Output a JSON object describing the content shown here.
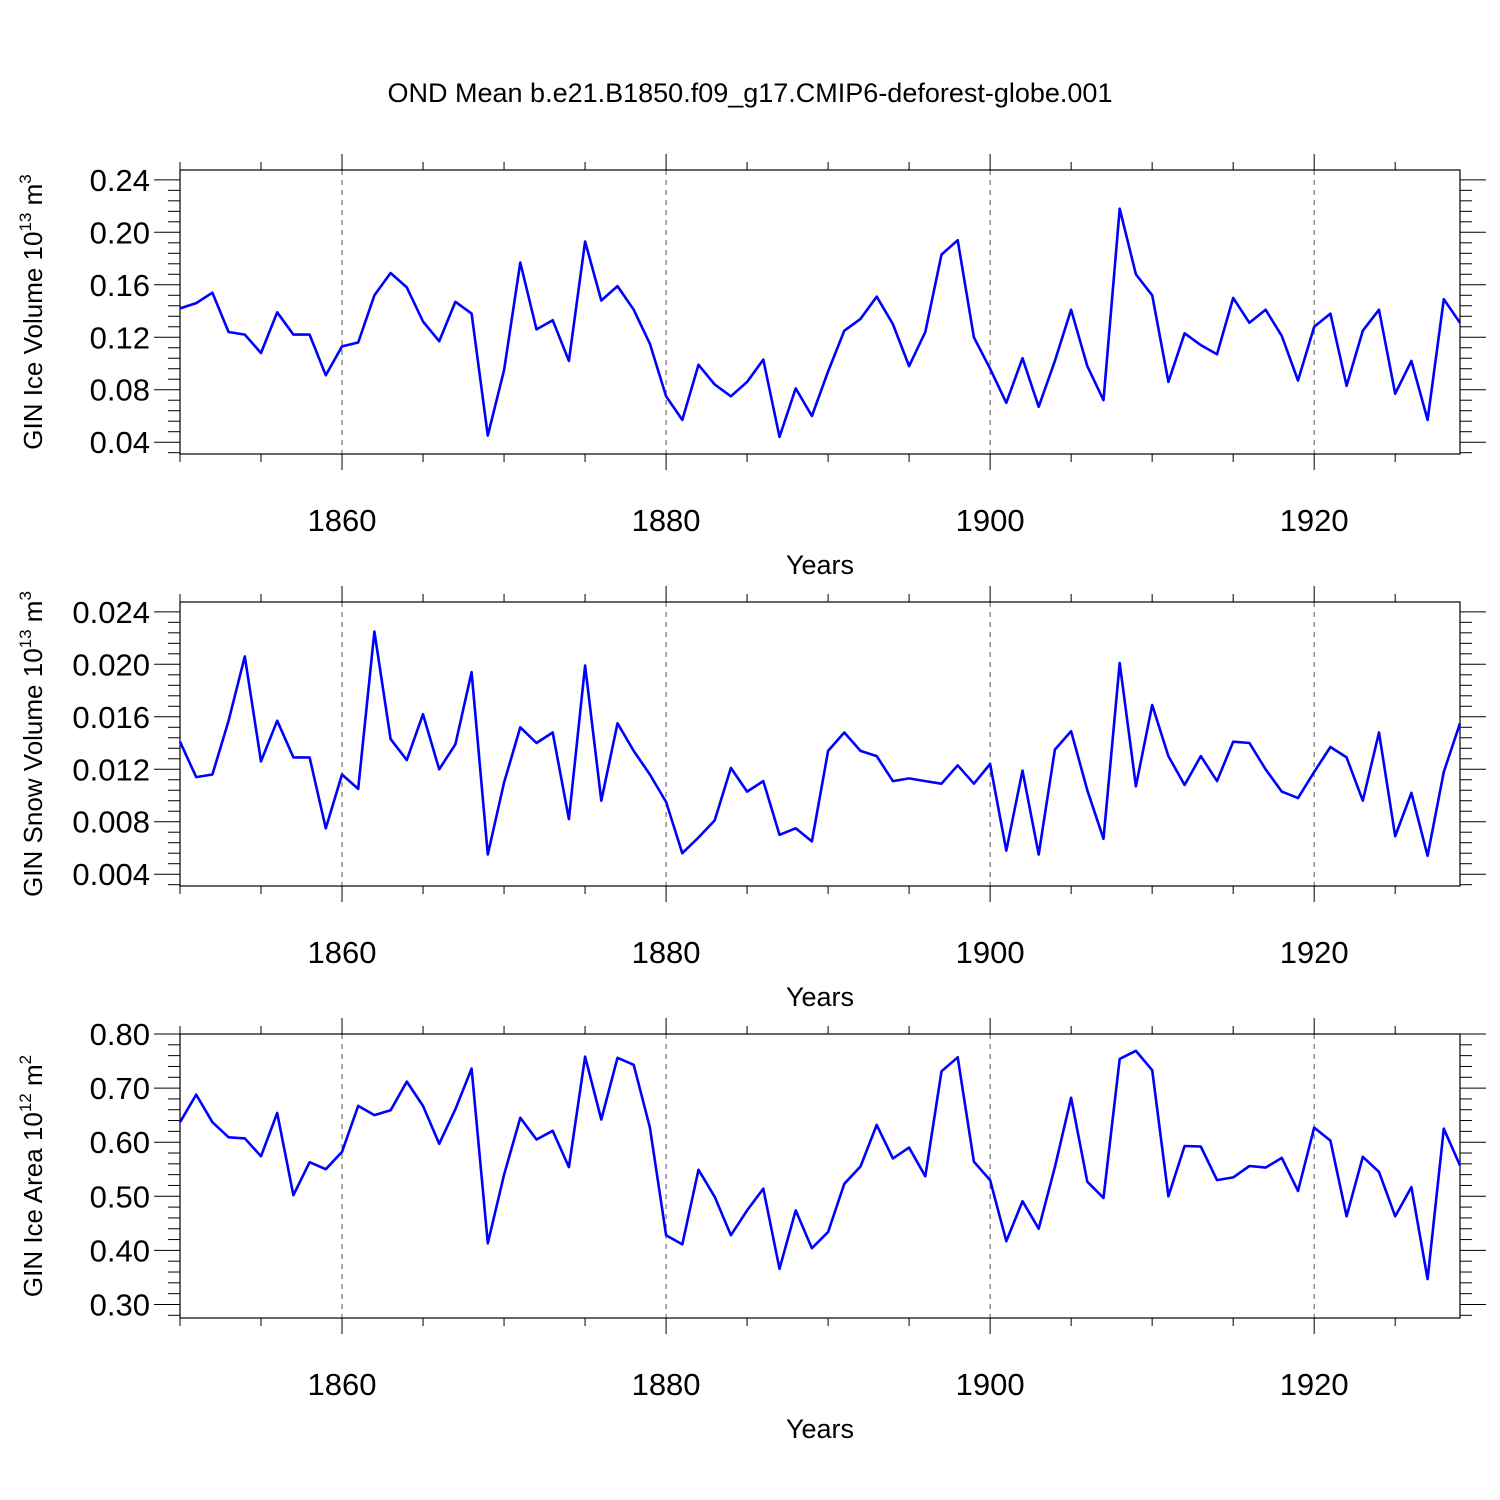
{
  "figure": {
    "title": "OND Mean b.e21.B1850.f09_g17.CMIP6-deforest-globe.001"
  },
  "colors": {
    "series": "#0000ff",
    "axis": "#000000",
    "grid": "#555555"
  },
  "chart_data": [
    {
      "type": "line",
      "xlabel": "Years",
      "ylabel": "GIN Ice Volume 10",
      "ylabel_exp": "13",
      "ylabel_unit": "m",
      "ylabel_unit_exp": "3",
      "xlim": [
        1850,
        1929
      ],
      "ylim": [
        0.031,
        0.2475
      ],
      "xticks": [
        1860,
        1880,
        1900,
        1920
      ],
      "xtick_labels": [
        "1860",
        "1880",
        "1900",
        "1920"
      ],
      "yticks": [
        0.04,
        0.08,
        0.12,
        0.16,
        0.2,
        0.24
      ],
      "ytick_labels": [
        "0.04",
        "0.08",
        "0.12",
        "0.16",
        "0.20",
        "0.24"
      ],
      "yminor": 0.008,
      "x": [
        1850,
        1851,
        1852,
        1853,
        1854,
        1855,
        1856,
        1857,
        1858,
        1859,
        1860,
        1861,
        1862,
        1863,
        1864,
        1865,
        1866,
        1867,
        1868,
        1869,
        1870,
        1871,
        1872,
        1873,
        1874,
        1875,
        1876,
        1877,
        1878,
        1879,
        1880,
        1881,
        1882,
        1883,
        1884,
        1885,
        1886,
        1887,
        1888,
        1889,
        1890,
        1891,
        1892,
        1893,
        1894,
        1895,
        1896,
        1897,
        1898,
        1899,
        1900,
        1901,
        1902,
        1903,
        1904,
        1905,
        1906,
        1907,
        1908,
        1909,
        1910,
        1911,
        1912,
        1913,
        1914,
        1915,
        1916,
        1917,
        1918,
        1919,
        1920,
        1921,
        1922,
        1923,
        1924,
        1925,
        1926,
        1927,
        1928,
        1929
      ],
      "values": [
        0.142,
        0.146,
        0.154,
        0.124,
        0.122,
        0.108,
        0.139,
        0.122,
        0.122,
        0.091,
        0.113,
        0.116,
        0.152,
        0.169,
        0.158,
        0.132,
        0.117,
        0.147,
        0.138,
        0.045,
        0.095,
        0.177,
        0.126,
        0.133,
        0.102,
        0.193,
        0.148,
        0.159,
        0.141,
        0.115,
        0.075,
        0.057,
        0.099,
        0.084,
        0.075,
        0.086,
        0.103,
        0.044,
        0.081,
        0.06,
        0.094,
        0.125,
        0.134,
        0.151,
        0.13,
        0.098,
        0.124,
        0.183,
        0.194,
        0.12,
        0.096,
        0.07,
        0.104,
        0.067,
        0.102,
        0.141,
        0.098,
        0.072,
        0.218,
        0.168,
        0.152,
        0.086,
        0.123,
        0.114,
        0.107,
        0.15,
        0.131,
        0.141,
        0.121,
        0.087,
        0.128,
        0.138,
        0.083,
        0.125,
        0.141,
        0.077,
        0.102,
        0.057,
        0.149,
        0.131
      ]
    },
    {
      "type": "line",
      "xlabel": "Years",
      "ylabel": "GIN Snow Volume 10",
      "ylabel_exp": "13",
      "ylabel_unit": "m",
      "ylabel_unit_exp": "3",
      "xlim": [
        1850,
        1929
      ],
      "ylim": [
        0.0031,
        0.02475
      ],
      "xticks": [
        1860,
        1880,
        1900,
        1920
      ],
      "xtick_labels": [
        "1860",
        "1880",
        "1900",
        "1920"
      ],
      "yticks": [
        0.004,
        0.008,
        0.012,
        0.016,
        0.02,
        0.024
      ],
      "ytick_labels": [
        "0.004",
        "0.008",
        "0.012",
        "0.016",
        "0.020",
        "0.024"
      ],
      "yminor": 0.0008,
      "x": [
        1850,
        1851,
        1852,
        1853,
        1854,
        1855,
        1856,
        1857,
        1858,
        1859,
        1860,
        1861,
        1862,
        1863,
        1864,
        1865,
        1866,
        1867,
        1868,
        1869,
        1870,
        1871,
        1872,
        1873,
        1874,
        1875,
        1876,
        1877,
        1878,
        1879,
        1880,
        1881,
        1882,
        1883,
        1884,
        1885,
        1886,
        1887,
        1888,
        1889,
        1890,
        1891,
        1892,
        1893,
        1894,
        1895,
        1896,
        1897,
        1898,
        1899,
        1900,
        1901,
        1902,
        1903,
        1904,
        1905,
        1906,
        1907,
        1908,
        1909,
        1910,
        1911,
        1912,
        1913,
        1914,
        1915,
        1916,
        1917,
        1918,
        1919,
        1920,
        1921,
        1922,
        1923,
        1924,
        1925,
        1926,
        1927,
        1928,
        1929
      ],
      "values": [
        0.0141,
        0.0114,
        0.0116,
        0.0157,
        0.0206,
        0.0126,
        0.0157,
        0.0129,
        0.0129,
        0.0075,
        0.0116,
        0.0105,
        0.0225,
        0.0143,
        0.0127,
        0.0162,
        0.012,
        0.0139,
        0.0194,
        0.0055,
        0.011,
        0.0152,
        0.014,
        0.0148,
        0.0082,
        0.0199,
        0.0096,
        0.0155,
        0.0134,
        0.0116,
        0.0095,
        0.0056,
        0.0068,
        0.0081,
        0.0121,
        0.0103,
        0.0111,
        0.007,
        0.0075,
        0.0065,
        0.0134,
        0.0148,
        0.0134,
        0.013,
        0.0111,
        0.0113,
        0.0111,
        0.0109,
        0.0123,
        0.0109,
        0.0124,
        0.0058,
        0.0119,
        0.0055,
        0.0135,
        0.0149,
        0.0104,
        0.0067,
        0.0201,
        0.0107,
        0.0169,
        0.013,
        0.0108,
        0.013,
        0.0111,
        0.0141,
        0.014,
        0.012,
        0.0103,
        0.0098,
        0.0118,
        0.0137,
        0.0129,
        0.0096,
        0.0148,
        0.0069,
        0.0102,
        0.0054,
        0.0118,
        0.0155
      ]
    },
    {
      "type": "line",
      "xlabel": "Years",
      "ylabel": "GIN Ice Area 10",
      "ylabel_exp": "12",
      "ylabel_unit": "m",
      "ylabel_unit_exp": "2",
      "xlim": [
        1850,
        1929
      ],
      "ylim": [
        0.275,
        0.8
      ],
      "xticks": [
        1860,
        1880,
        1900,
        1920
      ],
      "xtick_labels": [
        "1860",
        "1880",
        "1900",
        "1920"
      ],
      "yticks": [
        0.3,
        0.4,
        0.5,
        0.6,
        0.7,
        0.8
      ],
      "ytick_labels": [
        "0.30",
        "0.40",
        "0.50",
        "0.60",
        "0.70",
        "0.80"
      ],
      "yminor": 0.02,
      "x": [
        1850,
        1851,
        1852,
        1853,
        1854,
        1855,
        1856,
        1857,
        1858,
        1859,
        1860,
        1861,
        1862,
        1863,
        1864,
        1865,
        1866,
        1867,
        1868,
        1869,
        1870,
        1871,
        1872,
        1873,
        1874,
        1875,
        1876,
        1877,
        1878,
        1879,
        1880,
        1881,
        1882,
        1883,
        1884,
        1885,
        1886,
        1887,
        1888,
        1889,
        1890,
        1891,
        1892,
        1893,
        1894,
        1895,
        1896,
        1897,
        1898,
        1899,
        1900,
        1901,
        1902,
        1903,
        1904,
        1905,
        1906,
        1907,
        1908,
        1909,
        1910,
        1911,
        1912,
        1913,
        1914,
        1915,
        1916,
        1917,
        1918,
        1919,
        1920,
        1921,
        1922,
        1923,
        1924,
        1925,
        1926,
        1927,
        1928,
        1929
      ],
      "values": [
        0.637,
        0.688,
        0.637,
        0.609,
        0.607,
        0.574,
        0.654,
        0.502,
        0.563,
        0.55,
        0.582,
        0.667,
        0.65,
        0.659,
        0.712,
        0.667,
        0.597,
        0.661,
        0.736,
        0.413,
        0.54,
        0.645,
        0.605,
        0.621,
        0.554,
        0.758,
        0.642,
        0.756,
        0.743,
        0.627,
        0.428,
        0.411,
        0.549,
        0.499,
        0.428,
        0.474,
        0.514,
        0.366,
        0.474,
        0.404,
        0.434,
        0.523,
        0.555,
        0.632,
        0.57,
        0.59,
        0.537,
        0.731,
        0.757,
        0.564,
        0.53,
        0.417,
        0.491,
        0.44,
        0.554,
        0.682,
        0.527,
        0.497,
        0.754,
        0.769,
        0.733,
        0.5,
        0.593,
        0.592,
        0.53,
        0.535,
        0.556,
        0.553,
        0.571,
        0.51,
        0.627,
        0.603,
        0.463,
        0.573,
        0.545,
        0.463,
        0.517,
        0.347,
        0.625,
        0.557
      ]
    }
  ]
}
